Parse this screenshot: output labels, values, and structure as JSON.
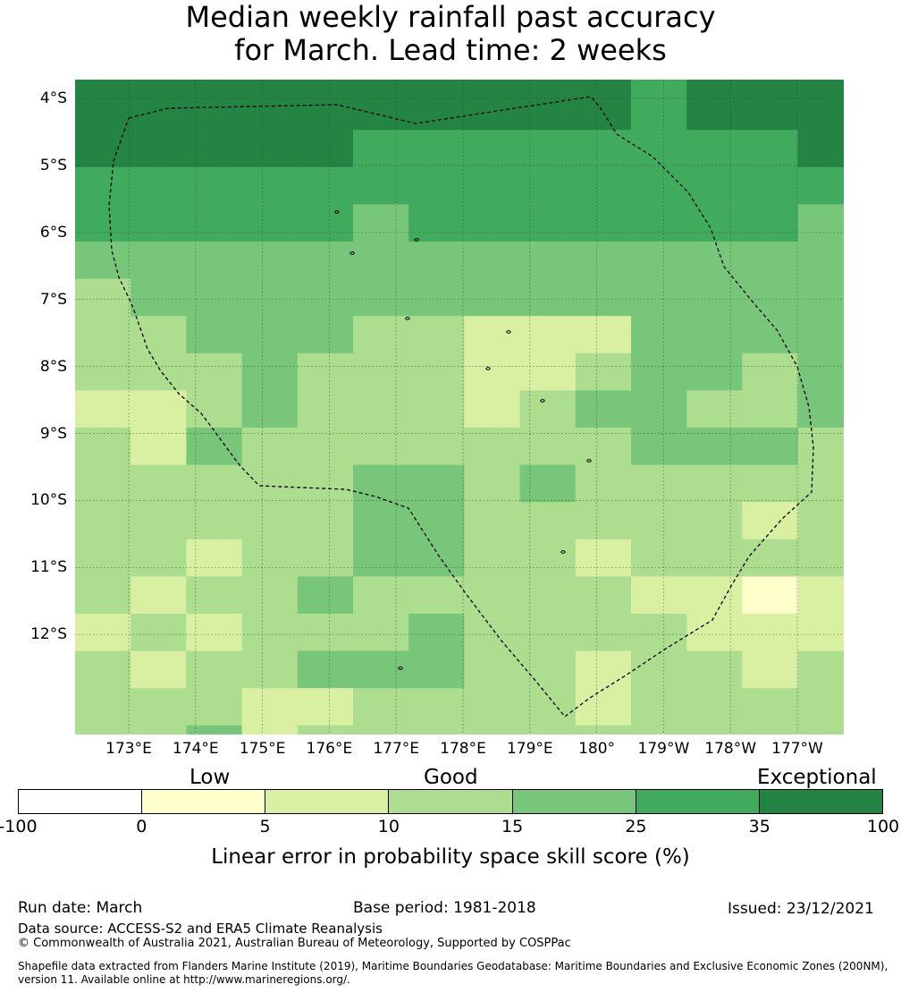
{
  "title": {
    "line1": "Median weekly rainfall past accuracy",
    "line2": "for March. Lead time: 2 weeks"
  },
  "map": {
    "lat_labels": [
      "4°S",
      "5°S",
      "6°S",
      "7°S",
      "8°S",
      "9°S",
      "10°S",
      "11°S",
      "12°S"
    ],
    "lon_labels": [
      "173°E",
      "174°E",
      "175°E",
      "176°E",
      "177°E",
      "178°E",
      "179°E",
      "180°",
      "179°W",
      "178°W",
      "177°W"
    ],
    "palette": [
      "#ffffff",
      "#ffffcc",
      "#d9f0a3",
      "#addd8e",
      "#78c679",
      "#41ab5d",
      "#238443"
    ],
    "grid_levels": [
      [
        6,
        6,
        6,
        6,
        6,
        6,
        6,
        6,
        6,
        6,
        5,
        6,
        6,
        6
      ],
      [
        6,
        6,
        6,
        6,
        6,
        6,
        6,
        6,
        6,
        6,
        5,
        6,
        6,
        6
      ],
      [
        6,
        6,
        6,
        6,
        6,
        5,
        5,
        5,
        5,
        5,
        5,
        5,
        5,
        6
      ],
      [
        5,
        5,
        5,
        5,
        5,
        5,
        5,
        5,
        5,
        5,
        5,
        5,
        5,
        5
      ],
      [
        5,
        5,
        5,
        5,
        5,
        4,
        5,
        5,
        5,
        5,
        5,
        5,
        5,
        4
      ],
      [
        4,
        4,
        4,
        4,
        4,
        4,
        4,
        4,
        4,
        4,
        4,
        4,
        4,
        4
      ],
      [
        3,
        4,
        4,
        4,
        4,
        4,
        4,
        4,
        4,
        4,
        4,
        4,
        4,
        4
      ],
      [
        3,
        3,
        4,
        4,
        4,
        3,
        3,
        2,
        2,
        2,
        4,
        4,
        4,
        4
      ],
      [
        3,
        3,
        3,
        4,
        3,
        3,
        3,
        2,
        2,
        3,
        4,
        4,
        3,
        4
      ],
      [
        2,
        2,
        3,
        4,
        3,
        3,
        3,
        2,
        3,
        4,
        4,
        3,
        3,
        4
      ],
      [
        3,
        2,
        4,
        3,
        3,
        3,
        3,
        3,
        3,
        3,
        4,
        4,
        4,
        3
      ],
      [
        3,
        3,
        3,
        3,
        3,
        4,
        4,
        3,
        4,
        3,
        3,
        3,
        3,
        3
      ],
      [
        3,
        3,
        3,
        3,
        3,
        4,
        4,
        3,
        3,
        3,
        3,
        3,
        2,
        3
      ],
      [
        3,
        3,
        2,
        3,
        3,
        4,
        4,
        3,
        3,
        2,
        3,
        3,
        3,
        3
      ],
      [
        3,
        2,
        3,
        3,
        4,
        3,
        3,
        3,
        3,
        3,
        2,
        2,
        1,
        2
      ],
      [
        2,
        3,
        2,
        3,
        3,
        3,
        4,
        3,
        3,
        3,
        3,
        2,
        2,
        2
      ],
      [
        3,
        2,
        3,
        3,
        4,
        4,
        4,
        3,
        3,
        2,
        3,
        3,
        2,
        3
      ],
      [
        3,
        3,
        3,
        2,
        2,
        3,
        3,
        3,
        3,
        2,
        3,
        3,
        3,
        3
      ],
      [
        3,
        3,
        4,
        2,
        3,
        3,
        3,
        3,
        3,
        3,
        3,
        3,
        3,
        3
      ]
    ]
  },
  "legend": {
    "categories": [
      "Low",
      "Good",
      "Exceptional"
    ],
    "tick_labels": [
      "-100",
      "0",
      "5",
      "10",
      "15",
      "25",
      "35",
      "100"
    ],
    "label": "Linear error in probability space skill score (%)"
  },
  "footer": {
    "run_date": "Run date: March",
    "base_period": "Base period: 1981-2018",
    "issued": "Issued: 23/12/2021",
    "data_source": "Data source: ACCESS-S2 and ERA5 Climate Reanalysis",
    "copyright": "© Commonwealth of Australia 2021, Australian Bureau of Meteorology, Supported by COSPPac",
    "shapefile_line1": "Shapefile data extracted from Flanders Marine Institute (2019), Maritime Boundaries Geodatabase: Maritime Boundaries and Exclusive Economic Zones (200NM),",
    "shapefile_line2": "version 11. Available online at http://www.marineregions.org/."
  }
}
